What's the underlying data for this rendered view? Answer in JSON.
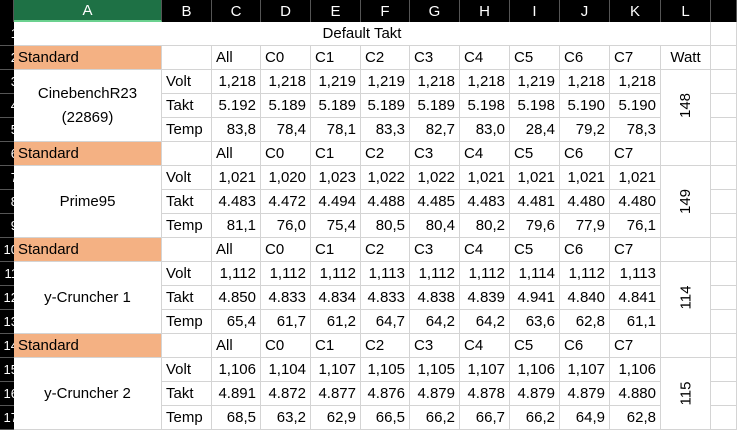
{
  "columns": [
    "A",
    "B",
    "C",
    "D",
    "E",
    "F",
    "G",
    "H",
    "I",
    "J",
    "K",
    "L"
  ],
  "selected_column": "A",
  "row_numbers": [
    "1",
    "2",
    "3",
    "4",
    "5",
    "6",
    "7",
    "8",
    "9",
    "10",
    "11",
    "12",
    "13",
    "14",
    "15",
    "16",
    "17"
  ],
  "title": "Default Takt",
  "watt_label": "Watt",
  "colors": {
    "standard_fill": "#f4b183",
    "header_bg": "#000000",
    "selected_header": "#1e7145",
    "grid": "#d4d4d4"
  },
  "blocks": [
    {
      "standard_label": "Standard",
      "name_lines": [
        "CinebenchR23",
        "(22869)"
      ],
      "headers": [
        "All",
        "C0",
        "C1",
        "C2",
        "C3",
        "C4",
        "C5",
        "C6",
        "C7"
      ],
      "rows": [
        {
          "label": "Volt",
          "values": [
            "1,218",
            "1,218",
            "1,219",
            "1,219",
            "1,218",
            "1,218",
            "1,219",
            "1,218",
            "1,218"
          ]
        },
        {
          "label": "Takt",
          "values": [
            "5.192",
            "5.189",
            "5.189",
            "5.189",
            "5.189",
            "5.198",
            "5.198",
            "5.190",
            "5.190"
          ]
        },
        {
          "label": "Temp",
          "values": [
            "83,8",
            "78,4",
            "78,1",
            "83,3",
            "82,7",
            "83,0",
            "28,4",
            "79,2",
            "78,3"
          ]
        }
      ],
      "watt": "148"
    },
    {
      "standard_label": "Standard",
      "name_lines": [
        "Prime95"
      ],
      "headers": [
        "All",
        "C0",
        "C1",
        "C2",
        "C3",
        "C4",
        "C5",
        "C6",
        "C7"
      ],
      "rows": [
        {
          "label": "Volt",
          "values": [
            "1,021",
            "1,020",
            "1,023",
            "1,022",
            "1,022",
            "1,021",
            "1,021",
            "1,021",
            "1,021"
          ]
        },
        {
          "label": "Takt",
          "values": [
            "4.483",
            "4.472",
            "4.494",
            "4.488",
            "4.485",
            "4.483",
            "4.481",
            "4.480",
            "4.480"
          ]
        },
        {
          "label": "Temp",
          "values": [
            "81,1",
            "76,0",
            "75,4",
            "80,5",
            "80,4",
            "80,2",
            "79,6",
            "77,9",
            "76,1"
          ]
        }
      ],
      "watt": "149"
    },
    {
      "standard_label": "Standard",
      "name_lines": [
        "y-Cruncher 1"
      ],
      "headers": [
        "All",
        "C0",
        "C1",
        "C2",
        "C3",
        "C4",
        "C5",
        "C6",
        "C7"
      ],
      "rows": [
        {
          "label": "Volt",
          "values": [
            "1,112",
            "1,112",
            "1,112",
            "1,113",
            "1,112",
            "1,112",
            "1,114",
            "1,112",
            "1,113"
          ]
        },
        {
          "label": "Takt",
          "values": [
            "4.850",
            "4.833",
            "4.834",
            "4.833",
            "4.838",
            "4.839",
            "4.941",
            "4.840",
            "4.841"
          ]
        },
        {
          "label": "Temp",
          "values": [
            "65,4",
            "61,7",
            "61,2",
            "64,7",
            "64,2",
            "64,2",
            "63,6",
            "62,8",
            "61,1"
          ]
        }
      ],
      "watt": "114"
    },
    {
      "standard_label": "Standard",
      "name_lines": [
        "y-Cruncher 2"
      ],
      "headers": [
        "All",
        "C0",
        "C1",
        "C2",
        "C3",
        "C4",
        "C5",
        "C6",
        "C7"
      ],
      "rows": [
        {
          "label": "Volt",
          "values": [
            "1,106",
            "1,104",
            "1,107",
            "1,105",
            "1,105",
            "1,107",
            "1,106",
            "1,107",
            "1,106"
          ]
        },
        {
          "label": "Takt",
          "values": [
            "4.891",
            "4.872",
            "4.877",
            "4.876",
            "4.879",
            "4.878",
            "4.879",
            "4.879",
            "4.880"
          ]
        },
        {
          "label": "Temp",
          "values": [
            "68,5",
            "63,2",
            "62,9",
            "66,5",
            "66,2",
            "66,7",
            "66,2",
            "64,9",
            "62,8"
          ]
        }
      ],
      "watt": "115"
    }
  ]
}
